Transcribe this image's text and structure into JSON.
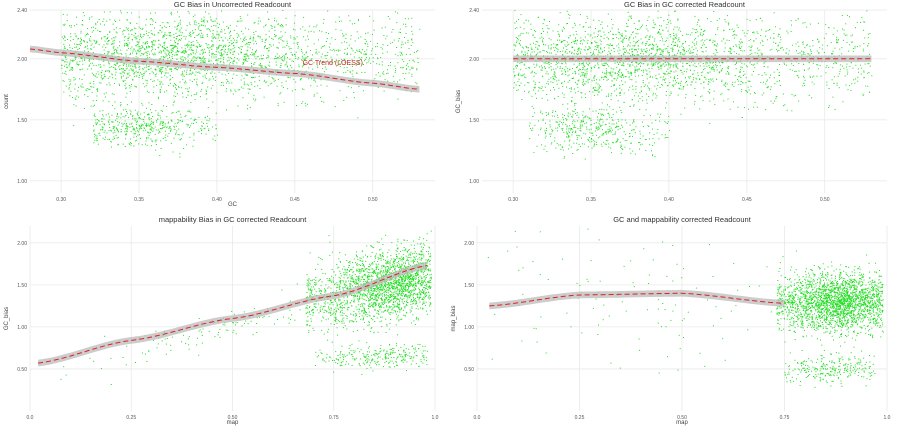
{
  "chart_data": [
    {
      "type": "scatter",
      "title": "GC Bias in Uncorrected Readcount",
      "xlabel": "GC",
      "ylabel": "count",
      "xlim": [
        0.28,
        0.54
      ],
      "ylim": [
        0.9,
        2.4
      ],
      "x_ticks": [
        "0.30",
        "0.35",
        "0.40",
        "0.45",
        "0.50"
      ],
      "x_tick_values": [
        0.3,
        0.35,
        0.4,
        0.45,
        0.5
      ],
      "y_ticks": [
        "1.00",
        "1.50",
        "2.00",
        "2.40"
      ],
      "y_tick_values": [
        1.0,
        1.5,
        2.0,
        2.4
      ],
      "point_color": "#22dd22",
      "fit_color": "#dd2222",
      "band_color": "#bbbbbb",
      "clusters": [
        {
          "x_range": [
            0.3,
            0.53
          ],
          "y_center": 2.03,
          "y_spread": 0.17,
          "n": 2400,
          "x_focus": 0.365
        },
        {
          "x_range": [
            0.32,
            0.4
          ],
          "y_center": 1.45,
          "y_spread": 0.09,
          "n": 450,
          "x_focus": 0.35
        }
      ],
      "fit": {
        "x": [
          0.28,
          0.3,
          0.35,
          0.4,
          0.45,
          0.5,
          0.53
        ],
        "y": [
          2.08,
          2.05,
          1.98,
          1.93,
          1.88,
          1.8,
          1.75
        ]
      },
      "annotation": "GC Trend (LOESS)"
    },
    {
      "type": "scatter",
      "title": "GC Bias in GC corrected Readcount",
      "xlabel": "",
      "ylabel": "GC_bias",
      "xlim": [
        0.28,
        0.54
      ],
      "ylim": [
        0.9,
        2.4
      ],
      "x_ticks": [
        "0.30",
        "0.35",
        "0.40",
        "0.45",
        "0.50"
      ],
      "x_tick_values": [
        0.3,
        0.35,
        0.4,
        0.45,
        0.5
      ],
      "y_ticks": [
        "1.00",
        "1.50",
        "2.00",
        "2.40"
      ],
      "y_tick_values": [
        1.0,
        1.5,
        2.0,
        2.4
      ],
      "point_color": "#22dd22",
      "fit_color": "#dd2222",
      "band_color": "#bbbbbb",
      "clusters": [
        {
          "x_range": [
            0.3,
            0.53
          ],
          "y_center": 2.0,
          "y_spread": 0.17,
          "n": 2400,
          "x_focus": 0.37
        },
        {
          "x_range": [
            0.31,
            0.4
          ],
          "y_center": 1.42,
          "y_spread": 0.09,
          "n": 420,
          "x_focus": 0.35
        }
      ],
      "fit": {
        "x": [
          0.3,
          0.53
        ],
        "y": [
          2.0,
          2.0
        ]
      },
      "annotation": ""
    },
    {
      "type": "scatter",
      "title": "mappability Bias in GC corrected Readcount",
      "xlabel": "map",
      "ylabel": "GC_bias",
      "xlim": [
        0.0,
        1.0
      ],
      "ylim": [
        0.0,
        2.2
      ],
      "x_ticks": [
        "0.0",
        "0.25",
        "0.50",
        "0.75",
        "1.0"
      ],
      "x_tick_values": [
        0.0,
        0.25,
        0.5,
        0.75,
        1.0
      ],
      "y_ticks": [
        "0.50",
        "1.00",
        "1.50",
        "2.00"
      ],
      "y_tick_values": [
        0.5,
        1.0,
        1.5,
        2.0
      ],
      "point_color": "#22dd22",
      "fit_color": "#dd2222",
      "band_color": "#bbbbbb",
      "clusters": [
        {
          "x_range": [
            0.68,
            0.99
          ],
          "y_center": 1.52,
          "y_spread": 0.2,
          "n": 2300,
          "trend": 0.9,
          "x_focus": 0.9
        },
        {
          "x_range": [
            0.7,
            0.98
          ],
          "y_center": 0.65,
          "y_spread": 0.07,
          "n": 260,
          "x_focus": 0.88
        },
        {
          "x_range": [
            0.05,
            0.68
          ],
          "y_center": 1.05,
          "y_spread": 0.1,
          "n": 120,
          "trend": 1.3,
          "x_focus": 0.5
        }
      ],
      "fit": {
        "x": [
          0.02,
          0.25,
          0.5,
          0.75,
          0.98
        ],
        "y": [
          0.57,
          0.84,
          1.1,
          1.37,
          1.73
        ]
      },
      "annotation": ""
    },
    {
      "type": "scatter",
      "title": "GC and mappability corrected Readcount",
      "xlabel": "map",
      "ylabel": "map_bias",
      "xlim": [
        0.0,
        1.0
      ],
      "ylim": [
        0.0,
        2.2
      ],
      "x_ticks": [
        "0.0",
        "0.25",
        "0.50",
        "0.75",
        "1.0"
      ],
      "x_tick_values": [
        0.0,
        0.25,
        0.5,
        0.75,
        1.0
      ],
      "y_ticks": [
        "0.50",
        "1.00",
        "1.50",
        "2.00"
      ],
      "y_tick_values": [
        0.5,
        1.0,
        1.5,
        2.0
      ],
      "point_color": "#22dd22",
      "fit_color": "#dd2222",
      "band_color": "#bbbbbb",
      "clusters": [
        {
          "x_range": [
            0.73,
            0.99
          ],
          "y_center": 1.3,
          "y_spread": 0.17,
          "n": 2300,
          "x_focus": 0.88
        },
        {
          "x_range": [
            0.75,
            0.97
          ],
          "y_center": 0.5,
          "y_spread": 0.08,
          "n": 260,
          "x_focus": 0.86
        },
        {
          "x_range": [
            0.02,
            0.72
          ],
          "y_center": 1.3,
          "y_spread": 0.35,
          "n": 110,
          "x_focus": 0.4
        }
      ],
      "fit": {
        "x": [
          0.03,
          0.25,
          0.5,
          0.75
        ],
        "y": [
          1.25,
          1.38,
          1.4,
          1.28
        ]
      },
      "annotation": ""
    }
  ]
}
